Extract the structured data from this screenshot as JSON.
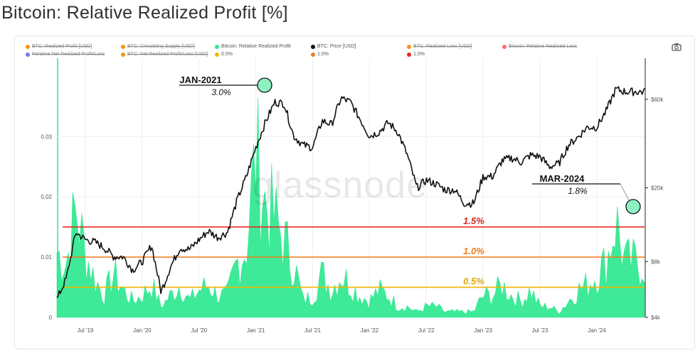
{
  "page": {
    "title": "Bitcoin: Relative Realized Profit [%]"
  },
  "legend": [
    {
      "label": "BTC: Realized Profit [USD]",
      "color": "#f7931a",
      "active": false
    },
    {
      "label": "BTC: Circulating Supply [USD]",
      "color": "#f7931a",
      "active": false
    },
    {
      "label": "Bitcoin: Relative Realized Profit",
      "color": "#2ee88f",
      "active": true
    },
    {
      "label": "BTC: Price [USD]",
      "color": "#111111",
      "active": true
    },
    {
      "label": "BTC: Realized Loss [USD]",
      "color": "#f7931a",
      "active": false
    },
    {
      "label": "Bitcoin: Relative Realized Loss",
      "color": "#ff6b6b",
      "active": false
    },
    {
      "label": "Relative Net Realized Profit/Loss",
      "color": "#7a7ae0",
      "active": false
    },
    {
      "label": "BTC: Net Realized Profit/Loss [USD]",
      "color": "#f7931a",
      "active": false
    },
    {
      "label": "0.5%",
      "color": "#f2b400",
      "active": true
    },
    {
      "label": "1.0%",
      "color": "#f07b18",
      "active": true
    },
    {
      "label": "1.5%",
      "color": "#e8281f",
      "active": true
    }
  ],
  "toolbar": {
    "camera_icon": "camera-icon"
  },
  "watermark": "glassnode",
  "colors": {
    "profit": "#2ee88f",
    "price": "#111111",
    "line_05": "#f2b400",
    "line_10": "#f07b18",
    "line_15": "#e8281f",
    "label_05": "#e0a800",
    "label_10": "#f07b18",
    "label_15": "#d7261d"
  },
  "annotations": [
    {
      "title": "JAN-2021",
      "value": "3.0%"
    },
    {
      "title": "MAR-2024",
      "value": "1.8%"
    }
  ],
  "threshold_labels": [
    "1.5%",
    "1.0%",
    "0.5%"
  ],
  "chart_data": {
    "type": "area",
    "title": "Bitcoin: Relative Realized Profit [%]",
    "x_ticks": [
      "Jul '19",
      "Jan '20",
      "Jul '20",
      "Jan '21",
      "Jul '21",
      "Jan '22",
      "Jul '22",
      "Jan '23",
      "Jul '23",
      "Jan '24"
    ],
    "left_axis": {
      "ticks": [
        "0",
        "0.01",
        "0.02",
        "0.03"
      ],
      "range": [
        0,
        0.043
      ]
    },
    "right_axis": {
      "ticks": [
        "$4k",
        "$8k",
        "$20k",
        "$60k"
      ],
      "scale": "log",
      "range": [
        4000,
        100000
      ]
    },
    "thresholds": [
      0.005,
      0.01,
      0.015
    ],
    "series": [
      {
        "name": "Bitcoin: Relative Realized Profit",
        "axis": "left",
        "x": [
          "2019-04",
          "2019-05",
          "2019-06",
          "2019-07",
          "2019-08",
          "2019-09",
          "2019-10",
          "2019-11",
          "2019-12",
          "2020-01",
          "2020-02",
          "2020-03",
          "2020-04",
          "2020-05",
          "2020-06",
          "2020-07",
          "2020-08",
          "2020-09",
          "2020-10",
          "2020-11",
          "2020-12",
          "2021-01",
          "2021-02",
          "2021-03",
          "2021-04",
          "2021-05",
          "2021-06",
          "2021-07",
          "2021-08",
          "2021-09",
          "2021-10",
          "2021-11",
          "2021-12",
          "2022-01",
          "2022-02",
          "2022-03",
          "2022-04",
          "2022-05",
          "2022-06",
          "2022-07",
          "2022-08",
          "2022-09",
          "2022-10",
          "2022-11",
          "2022-12",
          "2023-01",
          "2023-02",
          "2023-03",
          "2023-04",
          "2023-05",
          "2023-06",
          "2023-07",
          "2023-08",
          "2023-09",
          "2023-10",
          "2023-11",
          "2023-12",
          "2024-01",
          "2024-02",
          "2024-03",
          "2024-04"
        ],
        "values": [
          0.012,
          0.01,
          0.02,
          0.012,
          0.007,
          0.004,
          0.008,
          0.005,
          0.003,
          0.004,
          0.006,
          0.002,
          0.004,
          0.006,
          0.003,
          0.005,
          0.006,
          0.004,
          0.004,
          0.01,
          0.013,
          0.03,
          0.021,
          0.018,
          0.014,
          0.01,
          0.003,
          0.004,
          0.008,
          0.005,
          0.008,
          0.006,
          0.004,
          0.003,
          0.005,
          0.004,
          0.002,
          0.002,
          0.001,
          0.002,
          0.002,
          0.001,
          0.001,
          0.001,
          0.001,
          0.004,
          0.004,
          0.006,
          0.004,
          0.003,
          0.005,
          0.002,
          0.002,
          0.001,
          0.003,
          0.005,
          0.006,
          0.008,
          0.01,
          0.018,
          0.01
        ]
      },
      {
        "name": "BTC: Price [USD]",
        "axis": "right",
        "x": [
          "2019-04",
          "2019-05",
          "2019-06",
          "2019-07",
          "2019-08",
          "2019-09",
          "2019-10",
          "2019-11",
          "2019-12",
          "2020-01",
          "2020-02",
          "2020-03",
          "2020-04",
          "2020-05",
          "2020-06",
          "2020-07",
          "2020-08",
          "2020-09",
          "2020-10",
          "2020-11",
          "2020-12",
          "2021-01",
          "2021-02",
          "2021-03",
          "2021-04",
          "2021-05",
          "2021-06",
          "2021-07",
          "2021-08",
          "2021-09",
          "2021-10",
          "2021-11",
          "2021-12",
          "2022-01",
          "2022-02",
          "2022-03",
          "2022-04",
          "2022-05",
          "2022-06",
          "2022-07",
          "2022-08",
          "2022-09",
          "2022-10",
          "2022-11",
          "2022-12",
          "2023-01",
          "2023-02",
          "2023-03",
          "2023-04",
          "2023-05",
          "2023-06",
          "2023-07",
          "2023-08",
          "2023-09",
          "2023-10",
          "2023-11",
          "2023-12",
          "2024-01",
          "2024-02",
          "2024-03",
          "2024-04"
        ],
        "values": [
          5000,
          6500,
          11500,
          10500,
          10200,
          9500,
          8500,
          8500,
          7200,
          8000,
          9800,
          5500,
          7500,
          9500,
          9300,
          10500,
          11700,
          10800,
          11500,
          17000,
          23000,
          33000,
          45000,
          58000,
          57000,
          38000,
          34000,
          33000,
          46000,
          44000,
          61000,
          58000,
          47000,
          38000,
          40000,
          45000,
          40000,
          30000,
          20000,
          22000,
          21000,
          19500,
          19500,
          16500,
          16500,
          23000,
          23000,
          28000,
          29000,
          27500,
          30000,
          29500,
          26000,
          27000,
          34000,
          37500,
          42500,
          42500,
          52000,
          68000,
          66000
        ]
      }
    ]
  }
}
